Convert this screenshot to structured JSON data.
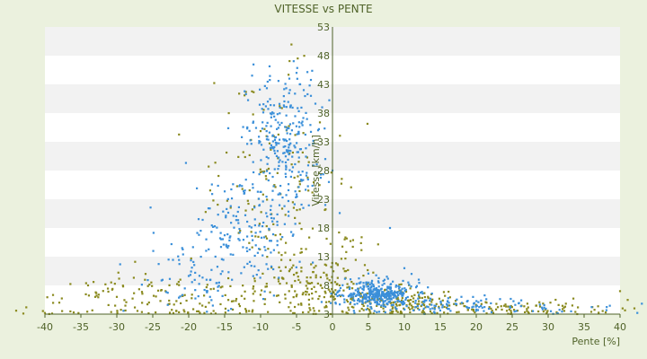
{
  "chart_data": {
    "type": "scatter",
    "title": "VITESSE vs PENTE",
    "xlabel": "Pente [%]",
    "ylabel": "Vitesse [km/h]",
    "xlim": [
      -40,
      40
    ],
    "ylim": [
      3,
      53
    ],
    "x_ticks": [
      "-40",
      "-35",
      "-30",
      "-25",
      "-20",
      "-15",
      "-10",
      "-5",
      "0",
      "5",
      "10",
      "15",
      "20",
      "25",
      "30",
      "35",
      "40"
    ],
    "y_ticks": [
      "3",
      "8",
      "13",
      "18",
      "23",
      "28",
      "33",
      "38",
      "43",
      "48",
      "53"
    ],
    "grid": "horizontal bands",
    "legend": "none",
    "colors": {
      "page_background": "#ebf1de",
      "band_light": "#ffffff",
      "band_dark": "#f2f2f2",
      "axis_and_text": "#4f6228",
      "series_blue": "#3a8fd9",
      "series_olive": "#8a8a1e"
    },
    "series": [
      {
        "color": "#3a8fd9",
        "clusters": [
          {
            "cx": -7,
            "cy": 33,
            "sx": 2.5,
            "sy": 6,
            "n": 260
          },
          {
            "cx": -12,
            "cy": 17,
            "sx": 4,
            "sy": 5,
            "n": 170
          },
          {
            "cx": -20,
            "cy": 9,
            "sx": 4,
            "sy": 3,
            "n": 60
          },
          {
            "cx": 6,
            "cy": 6.5,
            "sx": 2.5,
            "sy": 1.2,
            "n": 340
          },
          {
            "cx": 16,
            "cy": 4.5,
            "sx": 5,
            "sy": 0.8,
            "n": 90
          },
          {
            "cx": 28,
            "cy": 4,
            "sx": 6,
            "sy": 0.6,
            "n": 30
          }
        ],
        "extra": [
          [
            -5,
            45
          ],
          [
            -6,
            44
          ],
          [
            -4,
            42
          ],
          [
            -9,
            40
          ],
          [
            -3,
            41
          ],
          [
            -2,
            35
          ],
          [
            -1,
            30
          ],
          [
            -1,
            22
          ],
          [
            0,
            28
          ],
          [
            -0.5,
            26
          ],
          [
            8,
            18
          ],
          [
            10,
            11
          ],
          [
            11,
            10
          ],
          [
            12,
            9
          ]
        ]
      },
      {
        "color": "#8a8a1e",
        "clusters": [
          {
            "cx": -22,
            "cy": 5.5,
            "sx": 10,
            "sy": 2.5,
            "n": 160
          },
          {
            "cx": -8,
            "cy": 23,
            "sx": 4,
            "sy": 9,
            "n": 150
          },
          {
            "cx": -3,
            "cy": 8,
            "sx": 3,
            "sy": 3,
            "n": 110
          },
          {
            "cx": 8,
            "cy": 5,
            "sx": 5,
            "sy": 1.3,
            "n": 180
          },
          {
            "cx": 25,
            "cy": 4,
            "sx": 9,
            "sy": 0.8,
            "n": 100
          },
          {
            "cx": 2,
            "cy": 12,
            "sx": 2,
            "sy": 4,
            "n": 40
          }
        ],
        "extra": [
          [
            -44,
            3.6
          ],
          [
            -48,
            3.1
          ],
          [
            -43,
            3.1
          ],
          [
            -38,
            5
          ],
          [
            -33,
            6
          ],
          [
            -34,
            8
          ],
          [
            -30,
            6
          ],
          [
            -26,
            10
          ],
          [
            42,
            4
          ],
          [
            44,
            3.1
          ],
          [
            40,
            7
          ],
          [
            -40,
            3.2
          ],
          [
            -36,
            3.3
          ],
          [
            -39,
            3.1
          ],
          [
            36,
            3.4
          ],
          [
            38,
            3.3
          ]
        ]
      }
    ]
  }
}
